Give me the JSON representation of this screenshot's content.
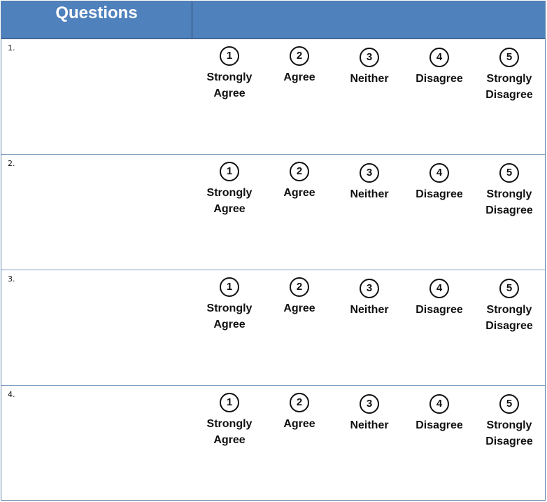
{
  "header": {
    "title": "Questions"
  },
  "options": [
    {
      "number": "1",
      "label": "Strongly\nAgree"
    },
    {
      "number": "2",
      "label": "Agree"
    },
    {
      "number": "3",
      "label": "Neither"
    },
    {
      "number": "4",
      "label": "Disagree"
    },
    {
      "number": "5",
      "label": "Strongly\nDisagree"
    }
  ],
  "questions": [
    {
      "number": "1."
    },
    {
      "number": "2."
    },
    {
      "number": "3."
    },
    {
      "number": "4."
    }
  ]
}
